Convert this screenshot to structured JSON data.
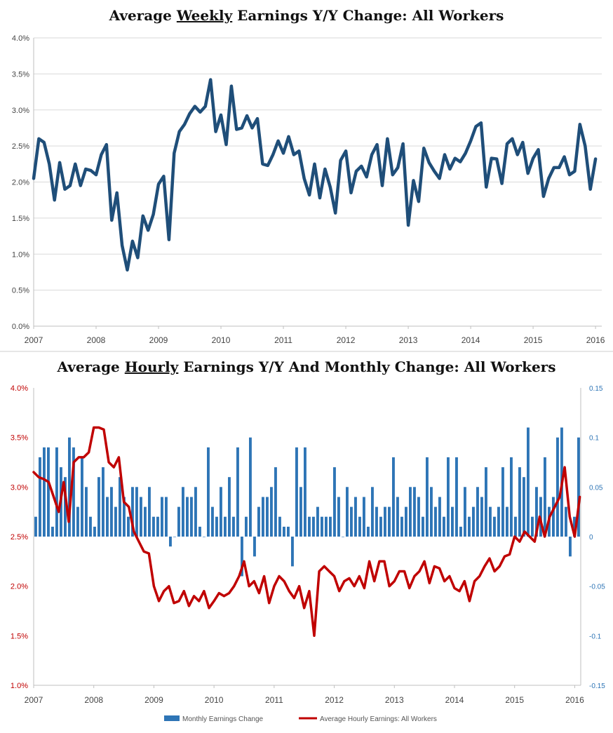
{
  "chart_data": [
    {
      "type": "line",
      "title": {
        "pre": "Average ",
        "underlined": "Weekly",
        "post": " Earnings Y/Y Change: All Workers"
      },
      "xlim": [
        2007,
        2016.1
      ],
      "ylim": [
        0,
        4
      ],
      "y_ticks": [
        "0.0%",
        "0.5%",
        "1.0%",
        "1.5%",
        "2.0%",
        "2.5%",
        "3.0%",
        "3.5%",
        "4.0%"
      ],
      "x_ticks": [
        "2007",
        "2008",
        "2009",
        "2010",
        "2011",
        "2012",
        "2013",
        "2014",
        "2015",
        "2016"
      ],
      "grid": true,
      "colors": {
        "line": "#1f4e79"
      },
      "series": [
        {
          "values": [
            2.05,
            2.6,
            2.55,
            2.25,
            1.75,
            2.27,
            1.9,
            1.95,
            2.25,
            1.95,
            2.18,
            2.16,
            2.1,
            2.38,
            2.52,
            1.47,
            1.85,
            1.12,
            0.78,
            1.18,
            0.95,
            1.53,
            1.33,
            1.55,
            1.97,
            2.08,
            1.2,
            2.4,
            2.7,
            2.8,
            2.95,
            3.05,
            2.97,
            3.05,
            3.42,
            2.7,
            2.93,
            2.52,
            3.33,
            2.73,
            2.75,
            2.92,
            2.75,
            2.88,
            2.25,
            2.23,
            2.38,
            2.57,
            2.4,
            2.63,
            2.38,
            2.43,
            2.05,
            1.82,
            2.25,
            1.78,
            2.18,
            1.93,
            1.57,
            2.3,
            2.43,
            1.85,
            2.15,
            2.22,
            2.07,
            2.38,
            2.52,
            1.95,
            2.6,
            2.1,
            2.2,
            2.53,
            1.4,
            2.02,
            1.73,
            2.47,
            2.27,
            2.15,
            2.05,
            2.38,
            2.18,
            2.33,
            2.28,
            2.4,
            2.57,
            2.77,
            2.82,
            1.93,
            2.33,
            2.32,
            1.98,
            2.53,
            2.6,
            2.38,
            2.55,
            2.12,
            2.33,
            2.45,
            1.8,
            2.05,
            2.2,
            2.2,
            2.35,
            2.1,
            2.15,
            2.8,
            2.5,
            1.9,
            2.32
          ]
        }
      ]
    },
    {
      "type": "bar+line",
      "title": {
        "pre": "Average ",
        "underlined": "Hourly",
        "post": " Earnings Y/Y And Monthly Change: All Workers"
      },
      "xlim": [
        2007,
        2016.1
      ],
      "ylim_left": [
        1,
        4
      ],
      "ylim_right": [
        -0.15,
        0.15
      ],
      "y_ticks_left": [
        "1.0%",
        "1.5%",
        "2.0%",
        "2.5%",
        "3.0%",
        "3.5%",
        "4.0%"
      ],
      "y_ticks_right": [
        "-0.15",
        "-0.1",
        "-0.05",
        "0",
        "0.05",
        "0.1",
        "0.15"
      ],
      "x_ticks": [
        "2007",
        "2008",
        "2009",
        "2010",
        "2011",
        "2012",
        "2013",
        "2014",
        "2015",
        "2016"
      ],
      "grid": false,
      "legend": {
        "position": "bottom-center",
        "bar_label": "Monthly Earnings Change",
        "line_label": "Average Hourly Earnings: All Workers"
      },
      "colors": {
        "bars": "#2e75b6",
        "line": "#c00000",
        "left_axis": "#c00000",
        "right_axis": "#2e75b6"
      },
      "series": [
        {
          "name": "Monthly Earnings Change",
          "axis": "right",
          "values": [
            0.02,
            0.08,
            0.09,
            0.09,
            0.01,
            0.09,
            0.07,
            0.06,
            0.1,
            0.09,
            0.03,
            0.08,
            0.05,
            0.02,
            0.01,
            0.06,
            0.07,
            0.04,
            0.05,
            0.03,
            0.06,
            0.04,
            0.02,
            0.05,
            0.05,
            0.04,
            0.03,
            0.05,
            0.02,
            0.02,
            0.04,
            0.04,
            -0.01,
            0.0,
            0.03,
            0.05,
            0.04,
            0.04,
            0.05,
            0.01,
            0.0,
            0.09,
            0.03,
            0.02,
            0.05,
            0.02,
            0.06,
            0.02,
            0.09,
            -0.04,
            0.02,
            0.1,
            -0.02,
            0.03,
            0.04,
            0.04,
            0.05,
            0.07,
            0.02,
            0.01,
            0.01,
            -0.03,
            0.09,
            0.05,
            0.09,
            0.02,
            0.02,
            0.03,
            0.02,
            0.02,
            0.02,
            0.07,
            0.04,
            0.0,
            0.05,
            0.03,
            0.04,
            0.02,
            0.04,
            0.01,
            0.05,
            0.03,
            0.02,
            0.03,
            0.03,
            0.08,
            0.04,
            0.02,
            0.03,
            0.05,
            0.05,
            0.04,
            0.02,
            0.08,
            0.05,
            0.03,
            0.04,
            0.02,
            0.08,
            0.03,
            0.08,
            0.01,
            0.05,
            0.02,
            0.03,
            0.05,
            0.04,
            0.07,
            0.03,
            0.02,
            0.03,
            0.07,
            0.03,
            0.08,
            0.02,
            0.07,
            0.06,
            0.11,
            0.02,
            0.05,
            0.04,
            0.08,
            0.03,
            0.04,
            0.1,
            0.11,
            0.03,
            -0.02,
            0.02,
            0.1
          ]
        },
        {
          "name": "Average Hourly Earnings: All Workers",
          "axis": "left",
          "values": [
            3.15,
            3.1,
            3.08,
            3.05,
            2.9,
            2.75,
            3.05,
            2.65,
            3.25,
            3.3,
            3.3,
            3.35,
            3.6,
            3.6,
            3.58,
            3.25,
            3.2,
            3.3,
            2.85,
            2.8,
            2.55,
            2.45,
            2.35,
            2.33,
            2.0,
            1.85,
            1.95,
            2.0,
            1.83,
            1.85,
            1.95,
            1.8,
            1.9,
            1.85,
            1.95,
            1.78,
            1.85,
            1.93,
            1.9,
            1.93,
            2.0,
            2.1,
            2.25,
            2.0,
            2.05,
            1.93,
            2.1,
            1.83,
            2.0,
            2.1,
            2.05,
            1.95,
            1.88,
            2.0,
            1.78,
            1.95,
            1.5,
            2.15,
            2.2,
            2.15,
            2.1,
            1.95,
            2.05,
            2.08,
            2.0,
            2.1,
            1.98,
            2.25,
            2.05,
            2.25,
            2.25,
            2.0,
            2.05,
            2.15,
            2.15,
            1.98,
            2.1,
            2.15,
            2.25,
            2.03,
            2.2,
            2.18,
            2.05,
            2.1,
            1.98,
            1.95,
            2.05,
            1.85,
            2.05,
            2.1,
            2.2,
            2.28,
            2.15,
            2.2,
            2.3,
            2.32,
            2.5,
            2.45,
            2.55,
            2.5,
            2.45,
            2.7,
            2.5,
            2.7,
            2.8,
            2.9,
            3.2,
            2.7,
            2.5,
            2.9
          ]
        }
      ]
    }
  ]
}
